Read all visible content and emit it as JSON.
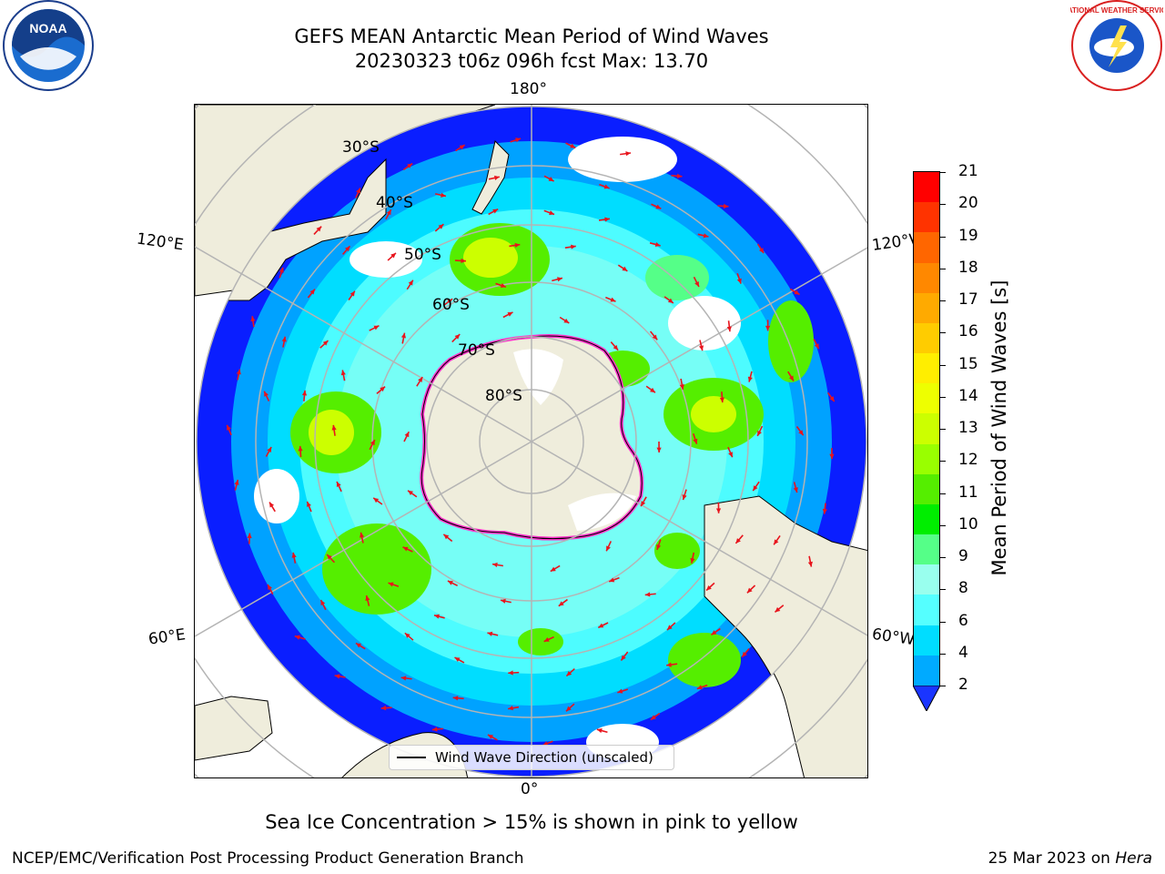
{
  "title": {
    "line1": "GEFS MEAN Antarctic Mean Period of Wind Waves",
    "line2": "20230323 t06z 096h fcst   Max: 13.70"
  },
  "map": {
    "projection": "south-polar-stereographic",
    "longitude_labels": [
      "180°",
      "120°E",
      "120°W",
      "60°E",
      "60°W",
      "0°"
    ],
    "latitude_labels": [
      "30°S",
      "40°S",
      "50°S",
      "60°S",
      "70°S",
      "80°S"
    ],
    "colors": {
      "land": "#efeddc",
      "ocean_deep": "#0a1eff",
      "ice_edge": "#ff33cc",
      "arrow": "#e8141c"
    }
  },
  "legend": {
    "label": "Wind Wave Direction (unscaled)"
  },
  "colorbar": {
    "label": "Mean Period of Wind Waves [s]",
    "ticks": [
      "21",
      "20",
      "19",
      "18",
      "17",
      "16",
      "15",
      "14",
      "13",
      "12",
      "11",
      "10",
      "9",
      "8",
      "6",
      "4",
      "2"
    ],
    "colors": [
      "#ff0000",
      "#ff3300",
      "#ff6600",
      "#ff8800",
      "#ffaa00",
      "#ffcc00",
      "#ffee00",
      "#eeff00",
      "#ccff00",
      "#99ff00",
      "#55ee00",
      "#00ee00",
      "#55ff88",
      "#99ffee",
      "#55ffff",
      "#00ddff",
      "#00aaff",
      "#0077ff",
      "#1a35ff"
    ]
  },
  "footnote": "Sea Ice Concentration > 15% is shown in pink to yellow",
  "footer": {
    "left": "NCEP/EMC/Verification Post Processing Product Generation Branch",
    "right_prefix": "25 Mar 2023 on ",
    "right_host": "Hera"
  },
  "logos": {
    "noaa_text": "NOAA",
    "nws_text": "NATIONAL WEATHER SERVICE"
  }
}
